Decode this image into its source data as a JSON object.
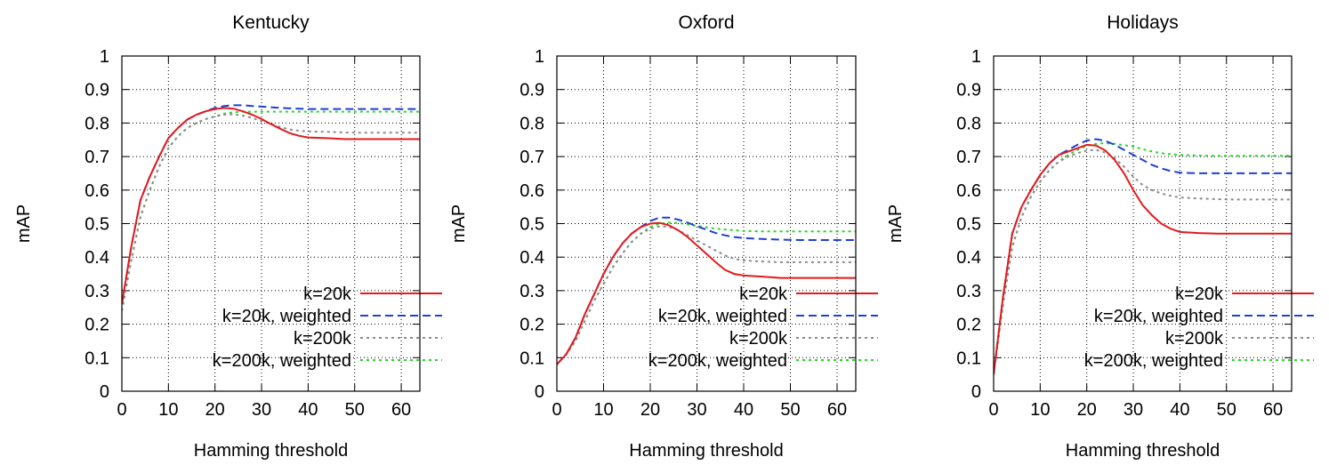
{
  "chart_data": [
    {
      "type": "line",
      "title": "Kentucky",
      "xlabel": "Hamming threshold",
      "ylabel": "mAP",
      "xlim": [
        0,
        64
      ],
      "ylim": [
        0,
        1
      ],
      "xticks": [
        "0",
        "10",
        "20",
        "30",
        "40",
        "50",
        "60"
      ],
      "yticks": [
        "0",
        "0.1",
        "0.2",
        "0.3",
        "0.4",
        "0.5",
        "0.6",
        "0.7",
        "0.8",
        "0.9",
        "1"
      ],
      "grid": true,
      "legend_position": "bottom-right",
      "series": [
        {
          "name": "k=20k",
          "color": "#e41a1c",
          "dash": "solid",
          "x": [
            0,
            2,
            4,
            6,
            8,
            10,
            12,
            14,
            16,
            18,
            20,
            22,
            24,
            26,
            28,
            30,
            32,
            34,
            36,
            38,
            40,
            44,
            48,
            52,
            56,
            60,
            64
          ],
          "y": [
            0.26,
            0.43,
            0.57,
            0.64,
            0.7,
            0.755,
            0.785,
            0.81,
            0.825,
            0.835,
            0.842,
            0.845,
            0.843,
            0.835,
            0.825,
            0.812,
            0.797,
            0.783,
            0.77,
            0.762,
            0.757,
            0.755,
            0.752,
            0.752,
            0.752,
            0.752,
            0.752
          ]
        },
        {
          "name": "k=20k, weighted",
          "color": "#1f3fd6",
          "dash": "dashed",
          "x": [
            0,
            2,
            4,
            6,
            8,
            10,
            12,
            14,
            16,
            18,
            20,
            22,
            24,
            26,
            28,
            30,
            34,
            38,
            40,
            44,
            48,
            52,
            56,
            60,
            64
          ],
          "y": [
            0.26,
            0.43,
            0.57,
            0.64,
            0.7,
            0.755,
            0.785,
            0.81,
            0.825,
            0.835,
            0.845,
            0.851,
            0.853,
            0.853,
            0.851,
            0.849,
            0.845,
            0.843,
            0.842,
            0.842,
            0.842,
            0.842,
            0.842,
            0.842,
            0.842
          ]
        },
        {
          "name": "k=200k",
          "color": "#8c8c8c",
          "dash": "dotted",
          "x": [
            0,
            2,
            4,
            6,
            8,
            10,
            12,
            14,
            16,
            18,
            20,
            22,
            24,
            26,
            28,
            30,
            32,
            34,
            36,
            38,
            40,
            44,
            48,
            52,
            56,
            60,
            64
          ],
          "y": [
            0.24,
            0.39,
            0.52,
            0.6,
            0.67,
            0.725,
            0.76,
            0.785,
            0.8,
            0.812,
            0.82,
            0.825,
            0.826,
            0.822,
            0.815,
            0.806,
            0.797,
            0.788,
            0.781,
            0.777,
            0.775,
            0.774,
            0.772,
            0.771,
            0.771,
            0.771,
            0.771
          ]
        },
        {
          "name": "k=200k, weighted",
          "color": "#2bd42b",
          "dash": "dotted",
          "x": [
            0,
            2,
            4,
            6,
            8,
            10,
            12,
            14,
            16,
            18,
            20,
            22,
            24,
            26,
            28,
            30,
            34,
            38,
            40,
            44,
            48,
            52,
            56,
            60,
            64
          ],
          "y": [
            0.24,
            0.39,
            0.52,
            0.6,
            0.67,
            0.725,
            0.76,
            0.785,
            0.8,
            0.812,
            0.82,
            0.828,
            0.832,
            0.834,
            0.834,
            0.834,
            0.834,
            0.834,
            0.834,
            0.834,
            0.834,
            0.834,
            0.834,
            0.834,
            0.834
          ]
        }
      ]
    },
    {
      "type": "line",
      "title": "Oxford",
      "xlabel": "Hamming threshold",
      "ylabel": "mAP",
      "xlim": [
        0,
        64
      ],
      "ylim": [
        0,
        1
      ],
      "xticks": [
        "0",
        "10",
        "20",
        "30",
        "40",
        "50",
        "60"
      ],
      "yticks": [
        "0",
        "0.1",
        "0.2",
        "0.3",
        "0.4",
        "0.5",
        "0.6",
        "0.7",
        "0.8",
        "0.9",
        "1"
      ],
      "grid": true,
      "legend_position": "bottom-right",
      "series": [
        {
          "name": "k=20k",
          "color": "#e41a1c",
          "dash": "solid",
          "x": [
            0,
            2,
            4,
            6,
            8,
            10,
            12,
            14,
            16,
            18,
            20,
            22,
            24,
            26,
            28,
            30,
            32,
            34,
            36,
            38,
            40,
            44,
            48,
            52,
            56,
            60,
            64
          ],
          "y": [
            0.08,
            0.11,
            0.16,
            0.23,
            0.29,
            0.35,
            0.4,
            0.44,
            0.47,
            0.49,
            0.5,
            0.502,
            0.495,
            0.48,
            0.46,
            0.435,
            0.41,
            0.385,
            0.362,
            0.35,
            0.345,
            0.342,
            0.338,
            0.338,
            0.338,
            0.338,
            0.338
          ]
        },
        {
          "name": "k=20k, weighted",
          "color": "#1f3fd6",
          "dash": "dashed",
          "x": [
            0,
            2,
            4,
            6,
            8,
            10,
            12,
            14,
            16,
            18,
            20,
            22,
            24,
            26,
            28,
            30,
            32,
            34,
            36,
            38,
            40,
            44,
            48,
            52,
            56,
            60,
            64
          ],
          "y": [
            0.08,
            0.11,
            0.16,
            0.23,
            0.29,
            0.35,
            0.4,
            0.44,
            0.47,
            0.49,
            0.508,
            0.518,
            0.518,
            0.512,
            0.503,
            0.492,
            0.482,
            0.472,
            0.465,
            0.46,
            0.457,
            0.454,
            0.452,
            0.451,
            0.451,
            0.451,
            0.451
          ]
        },
        {
          "name": "k=200k",
          "color": "#8c8c8c",
          "dash": "dotted",
          "x": [
            0,
            2,
            4,
            6,
            8,
            10,
            12,
            14,
            16,
            18,
            20,
            22,
            24,
            26,
            28,
            30,
            32,
            34,
            36,
            38,
            40,
            44,
            48,
            52,
            56,
            60,
            64
          ],
          "y": [
            0.08,
            0.11,
            0.15,
            0.21,
            0.27,
            0.32,
            0.37,
            0.41,
            0.445,
            0.47,
            0.485,
            0.492,
            0.49,
            0.48,
            0.465,
            0.45,
            0.435,
            0.42,
            0.405,
            0.395,
            0.39,
            0.387,
            0.385,
            0.385,
            0.385,
            0.385,
            0.385
          ]
        },
        {
          "name": "k=200k, weighted",
          "color": "#2bd42b",
          "dash": "dotted",
          "x": [
            0,
            2,
            4,
            6,
            8,
            10,
            12,
            14,
            16,
            18,
            20,
            22,
            24,
            26,
            28,
            30,
            34,
            38,
            40,
            44,
            48,
            52,
            56,
            60,
            64
          ],
          "y": [
            0.08,
            0.11,
            0.15,
            0.21,
            0.27,
            0.32,
            0.37,
            0.41,
            0.445,
            0.47,
            0.49,
            0.5,
            0.503,
            0.502,
            0.498,
            0.493,
            0.485,
            0.48,
            0.478,
            0.477,
            0.477,
            0.477,
            0.477,
            0.477,
            0.477
          ]
        }
      ]
    },
    {
      "type": "line",
      "title": "Holidays",
      "xlabel": "Hamming threshold",
      "ylabel": "mAP",
      "xlim": [
        0,
        64
      ],
      "ylim": [
        0,
        1
      ],
      "xticks": [
        "0",
        "10",
        "20",
        "30",
        "40",
        "50",
        "60"
      ],
      "yticks": [
        "0",
        "0.1",
        "0.2",
        "0.3",
        "0.4",
        "0.5",
        "0.6",
        "0.7",
        "0.8",
        "0.9",
        "1"
      ],
      "grid": true,
      "legend_position": "bottom-right",
      "series": [
        {
          "name": "k=20k",
          "color": "#e41a1c",
          "dash": "solid",
          "x": [
            0,
            2,
            4,
            6,
            8,
            10,
            12,
            14,
            16,
            18,
            20,
            22,
            24,
            26,
            28,
            30,
            32,
            34,
            36,
            38,
            40,
            44,
            48,
            52,
            56,
            60,
            64
          ],
          "y": [
            0.05,
            0.28,
            0.47,
            0.55,
            0.6,
            0.645,
            0.68,
            0.705,
            0.715,
            0.725,
            0.735,
            0.733,
            0.718,
            0.69,
            0.65,
            0.6,
            0.555,
            0.525,
            0.5,
            0.485,
            0.475,
            0.472,
            0.47,
            0.47,
            0.47,
            0.47,
            0.47
          ]
        },
        {
          "name": "k=20k, weighted",
          "color": "#1f3fd6",
          "dash": "dashed",
          "x": [
            0,
            2,
            4,
            6,
            8,
            10,
            12,
            14,
            16,
            18,
            20,
            22,
            24,
            26,
            28,
            30,
            32,
            34,
            36,
            38,
            40,
            44,
            48,
            52,
            56,
            60,
            64
          ],
          "y": [
            0.05,
            0.28,
            0.47,
            0.55,
            0.6,
            0.645,
            0.68,
            0.705,
            0.72,
            0.735,
            0.748,
            0.752,
            0.747,
            0.735,
            0.72,
            0.705,
            0.69,
            0.675,
            0.665,
            0.657,
            0.652,
            0.65,
            0.65,
            0.65,
            0.65,
            0.65,
            0.65
          ]
        },
        {
          "name": "k=200k",
          "color": "#8c8c8c",
          "dash": "dotted",
          "x": [
            0,
            2,
            4,
            6,
            8,
            10,
            12,
            14,
            16,
            18,
            20,
            22,
            24,
            26,
            28,
            30,
            32,
            34,
            36,
            38,
            40,
            44,
            48,
            52,
            56,
            60,
            64
          ],
          "y": [
            0.05,
            0.26,
            0.43,
            0.52,
            0.58,
            0.625,
            0.66,
            0.685,
            0.7,
            0.71,
            0.718,
            0.72,
            0.712,
            0.695,
            0.67,
            0.64,
            0.615,
            0.6,
            0.59,
            0.583,
            0.578,
            0.575,
            0.573,
            0.572,
            0.572,
            0.572,
            0.572
          ]
        },
        {
          "name": "k=200k, weighted",
          "color": "#2bd42b",
          "dash": "dotted",
          "x": [
            0,
            2,
            4,
            6,
            8,
            10,
            12,
            14,
            16,
            18,
            20,
            22,
            24,
            26,
            28,
            30,
            32,
            34,
            36,
            38,
            40,
            44,
            48,
            52,
            56,
            60,
            64
          ],
          "y": [
            0.05,
            0.26,
            0.43,
            0.52,
            0.58,
            0.625,
            0.66,
            0.685,
            0.705,
            0.72,
            0.732,
            0.738,
            0.74,
            0.738,
            0.734,
            0.73,
            0.722,
            0.715,
            0.71,
            0.707,
            0.705,
            0.703,
            0.702,
            0.702,
            0.702,
            0.702,
            0.702
          ]
        }
      ]
    }
  ]
}
